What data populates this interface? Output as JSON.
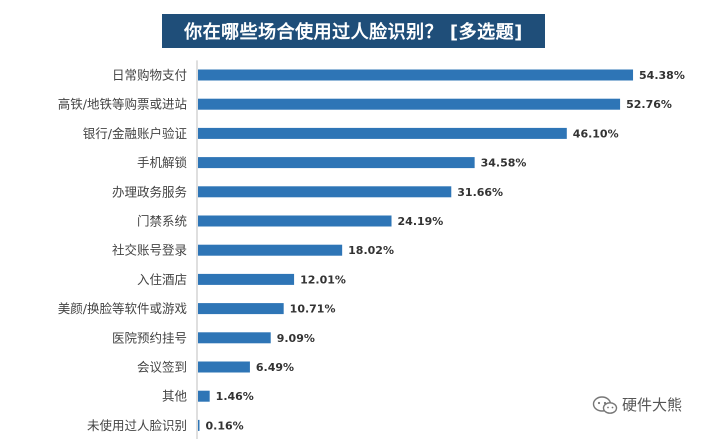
{
  "title": "你在哪些场合使用过人脸识别？ [多选题]",
  "watermark": {
    "text": "硬件大熊",
    "icon": "wechat-icon"
  },
  "colors": {
    "bar": "#2e75b6",
    "title_bg": "#1f4e79",
    "axis": "#bfbfbf"
  },
  "chart_data": {
    "type": "bar",
    "orientation": "horizontal",
    "title": "你在哪些场合使用过人脸识别？ [多选题]",
    "categories": [
      "日常购物支付",
      "高铁/地铁等购票或进站",
      "银行/金融账户验证",
      "手机解锁",
      "办理政务服务",
      "门禁系统",
      "社交账号登录",
      "入住酒店",
      "美颜/换脸等软件或游戏",
      "医院预约挂号",
      "会议签到",
      "其他",
      "未使用过人脸识别"
    ],
    "values": [
      54.38,
      52.76,
      46.1,
      34.58,
      31.66,
      24.19,
      18.02,
      12.01,
      10.71,
      9.09,
      6.49,
      1.46,
      0.16
    ],
    "value_labels": [
      "54.38%",
      "52.76%",
      "46.10%",
      "34.58%",
      "31.66%",
      "24.19%",
      "18.02%",
      "12.01%",
      "10.71%",
      "9.09%",
      "6.49%",
      "1.46%",
      "0.16%"
    ],
    "xlim": [
      0,
      60
    ],
    "grid": false,
    "legend": "none"
  }
}
